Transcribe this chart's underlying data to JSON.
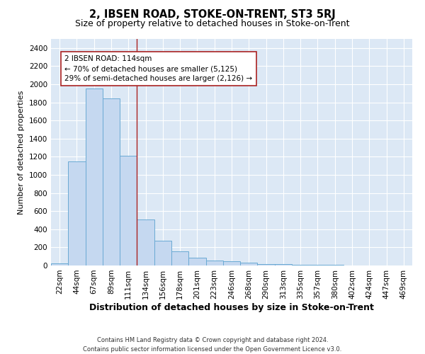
{
  "title": "2, IBSEN ROAD, STOKE-ON-TRENT, ST3 5RJ",
  "subtitle": "Size of property relative to detached houses in Stoke-on-Trent",
  "xlabel": "Distribution of detached houses by size in Stoke-on-Trent",
  "ylabel": "Number of detached properties",
  "footer_line1": "Contains HM Land Registry data © Crown copyright and database right 2024.",
  "footer_line2": "Contains public sector information licensed under the Open Government Licence v3.0.",
  "bar_labels": [
    "22sqm",
    "44sqm",
    "67sqm",
    "89sqm",
    "111sqm",
    "134sqm",
    "156sqm",
    "178sqm",
    "201sqm",
    "223sqm",
    "246sqm",
    "268sqm",
    "290sqm",
    "313sqm",
    "335sqm",
    "357sqm",
    "380sqm",
    "402sqm",
    "424sqm",
    "447sqm",
    "469sqm"
  ],
  "bar_values": [
    25,
    1150,
    1950,
    1840,
    1210,
    510,
    270,
    155,
    85,
    55,
    45,
    30,
    18,
    14,
    8,
    5,
    4,
    3,
    2,
    2,
    2
  ],
  "bar_color": "#c5d8f0",
  "bar_edgecolor": "#6aaad4",
  "plot_bg_color": "#dce8f5",
  "grid_color": "#ffffff",
  "vline_x": 4.5,
  "vline_color": "#aa2222",
  "annotation_text": "2 IBSEN ROAD: 114sqm\n← 70% of detached houses are smaller (5,125)\n29% of semi-detached houses are larger (2,126) →",
  "annotation_box_edgecolor": "#aa2222",
  "ylim": [
    0,
    2500
  ],
  "yticks": [
    0,
    200,
    400,
    600,
    800,
    1000,
    1200,
    1400,
    1600,
    1800,
    2000,
    2200,
    2400
  ],
  "title_fontsize": 10.5,
  "subtitle_fontsize": 9,
  "xlabel_fontsize": 9,
  "ylabel_fontsize": 8,
  "tick_fontsize": 7.5,
  "annotation_fontsize": 7.5,
  "footer_fontsize": 6
}
